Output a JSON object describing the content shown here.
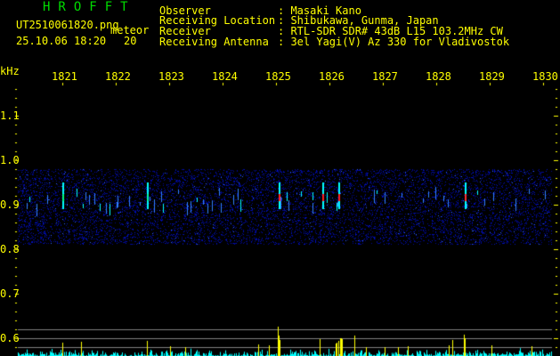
{
  "header": {
    "app_title": "HROFFT",
    "filename": "UT2510061820.png",
    "mode": "meteor",
    "datetime": "25.10.06 18:20",
    "count": "20",
    "info": [
      {
        "label": "Observer",
        "value": "Masaki Kano"
      },
      {
        "label": "Receiving Location",
        "value": "Shibukawa, Gunma, Japan"
      },
      {
        "label": "Receiver",
        "value": "RTL-SDR SDR# 43dB L15 103.2MHz CW"
      },
      {
        "label": "Receiving Antenna",
        "value": "3el Yagi(V) Az 330 for Vladivostok"
      }
    ]
  },
  "axes": {
    "y_unit": "kHz",
    "y_ticks": [
      "1.1",
      "1.0",
      "0.9",
      "0.8",
      "0.7",
      "0.6"
    ],
    "x_ticks": [
      "1821",
      "1822",
      "1823",
      "1824",
      "1825",
      "1826",
      "1827",
      "1828",
      "1829",
      "1830"
    ]
  },
  "colors": {
    "text": "#ffff00",
    "title": "#00dd00",
    "noise": "#00ffff",
    "echo": "#ffff00",
    "baseline": "#808080"
  }
}
